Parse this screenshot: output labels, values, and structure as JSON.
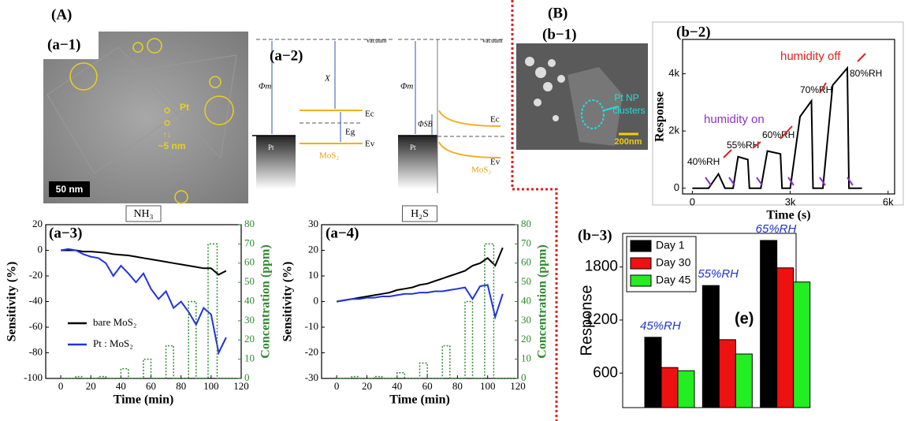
{
  "panels": {
    "A": "(A)",
    "a1": "(a−1)",
    "a2": "(a−2)",
    "a3": "(a−3)",
    "a4": "(a−4)",
    "B": "(B)",
    "b1": "(b−1)",
    "b2": "(b−2)",
    "b3": "(b−3)"
  },
  "tem_image": {
    "particle_label": "Pt",
    "size_label": "~5 nm",
    "scale_bar": "50 nm"
  },
  "band_diagram": {
    "left": {
      "vacuum": "vacuum",
      "work_function": "Φm",
      "affinity": "X",
      "conduction": "Ec",
      "gap": "Eg",
      "valence": "Ev",
      "metal": "Pt",
      "semiconductor": "MoS₂"
    },
    "right": {
      "vacuum": "vacuum",
      "work_function": "Φm",
      "barrier": "ΦSB",
      "conduction": "Ec",
      "valence": "Ev",
      "metal": "Pt",
      "semiconductor": "MoS₂"
    }
  },
  "sem_image": {
    "label_line1": "Pt NP",
    "label_line2": "clusters",
    "scale_bar": "200nm"
  },
  "chart_data": [
    {
      "type": "line",
      "title": "NH₃",
      "x_label": "Time (min)",
      "y_label": "Sensitivity (%)",
      "y2_label": "Concentration (ppm)",
      "x": [
        0,
        5,
        10,
        15,
        20,
        25,
        30,
        35,
        40,
        45,
        50,
        55,
        60,
        65,
        70,
        75,
        80,
        85,
        90,
        95,
        100,
        105,
        110
      ],
      "xlim": [
        -10,
        120
      ],
      "xticks": [
        0,
        20,
        40,
        60,
        80,
        100,
        120
      ],
      "ylim": [
        -100,
        20
      ],
      "yticks": [
        -100,
        -80,
        -60,
        -40,
        -20,
        0,
        20
      ],
      "y2lim": [
        0,
        80
      ],
      "y2ticks": [
        0,
        10,
        20,
        30,
        40,
        50,
        60,
        70,
        80
      ],
      "legend": "lower left",
      "series": [
        {
          "name": "bare MoS₂",
          "color": "#000000",
          "values": [
            0,
            0,
            0,
            -1,
            -1,
            -1.5,
            -2,
            -3,
            -3.5,
            -4,
            -5,
            -6,
            -7,
            -8,
            -9,
            -10,
            -11,
            -12,
            -13,
            -14,
            -14,
            -19,
            -16
          ]
        },
        {
          "name": "Pt : MoS₂",
          "color": "#2233dd",
          "values": [
            0,
            1,
            0,
            -3,
            -5,
            -6,
            -10,
            -20,
            -12,
            -18,
            -25,
            -18,
            -30,
            -38,
            -32,
            -45,
            -40,
            -48,
            -58,
            -45,
            -50,
            -80,
            -68
          ]
        },
        {
          "color": "#2e8b2e",
          "axis": "y2",
          "line_style": "dotted",
          "x": [
            0,
            10,
            10,
            14,
            14,
            25,
            25,
            30,
            30,
            40,
            40,
            45,
            45,
            55,
            55,
            60,
            60,
            70,
            70,
            75,
            75,
            85,
            85,
            90,
            90,
            98,
            98,
            104,
            104,
            120
          ],
          "values": [
            0,
            0,
            1,
            1,
            0,
            0,
            1,
            1,
            0,
            0,
            5,
            5,
            0,
            0,
            10,
            10,
            0,
            0,
            17,
            17,
            0,
            0,
            40,
            40,
            0,
            0,
            70,
            70,
            0,
            0
          ]
        }
      ]
    },
    {
      "type": "line",
      "title": "H₂S",
      "x_label": "Time (min)",
      "y_label": "Sensitivity (%)",
      "y2_label": "Concentration (ppm)",
      "x": [
        0,
        5,
        10,
        15,
        20,
        25,
        30,
        35,
        40,
        45,
        50,
        55,
        60,
        65,
        70,
        75,
        80,
        85,
        90,
        95,
        100,
        105,
        110
      ],
      "xlim": [
        -10,
        120
      ],
      "xticks": [
        0,
        20,
        40,
        60,
        80,
        100,
        120
      ],
      "ylim": [
        -30,
        30
      ],
      "yticks": [
        -30,
        -20,
        -10,
        0,
        10,
        20,
        30
      ],
      "y2lim": [
        0,
        80
      ],
      "y2ticks": [
        0,
        10,
        20,
        30,
        40,
        50,
        60,
        70,
        80
      ],
      "series": [
        {
          "color": "#000000",
          "values": [
            0,
            0.5,
            1,
            1.5,
            2,
            2.5,
            3,
            3.5,
            4.5,
            5,
            5.5,
            6.5,
            7,
            8,
            9,
            10,
            11,
            12,
            14,
            15,
            17,
            14,
            21
          ]
        },
        {
          "color": "#2233dd",
          "values": [
            0,
            0.5,
            1,
            1,
            1.5,
            1.5,
            2,
            2,
            2.5,
            3,
            3,
            3.5,
            3.5,
            4,
            4,
            4.5,
            5,
            5.5,
            1,
            6,
            6.5,
            -6,
            3
          ]
        },
        {
          "color": "#2e8b2e",
          "axis": "y2",
          "line_style": "dotted",
          "x": [
            0,
            10,
            10,
            14,
            14,
            25,
            25,
            30,
            30,
            40,
            40,
            45,
            45,
            55,
            55,
            60,
            60,
            70,
            70,
            75,
            75,
            85,
            85,
            90,
            90,
            98,
            98,
            104,
            104,
            120
          ],
          "values": [
            0,
            0,
            1,
            1,
            0,
            0,
            1,
            1,
            0,
            0,
            3,
            3,
            0,
            0,
            8,
            8,
            0,
            0,
            17,
            17,
            0,
            0,
            40,
            40,
            0,
            0,
            70,
            70,
            0,
            0
          ]
        }
      ]
    },
    {
      "type": "line",
      "x_label": "Time (s)",
      "y_label": "Response",
      "x": [
        0,
        300,
        500,
        800,
        1000,
        1200,
        1250,
        1400,
        1700,
        1750,
        2000,
        2100,
        2300,
        2700,
        2750,
        2900,
        3000,
        3300,
        3650,
        3700,
        3900,
        4000,
        4300,
        4750,
        4800,
        5000,
        5200
      ],
      "xlim": [
        -300,
        6200
      ],
      "xticks": [
        0,
        {
          "value": 3000,
          "label": "3k"
        },
        {
          "value": 6000,
          "label": "6k"
        }
      ],
      "ylim": [
        -200,
        5200
      ],
      "yticks": [
        0,
        {
          "value": 2000,
          "label": "2k"
        },
        {
          "value": 4000,
          "label": "4k"
        }
      ],
      "series": [
        {
          "color": "#000000",
          "values": [
            0,
            0,
            0,
            500,
            0,
            0,
            0,
            1100,
            1000,
            0,
            0,
            0,
            1300,
            1200,
            0,
            0,
            0,
            2500,
            3050,
            0,
            0,
            0,
            3600,
            4200,
            0,
            0,
            0
          ]
        }
      ],
      "annotations": {
        "on": "humidity on",
        "off": "humidity off",
        "rh": [
          "40%RH",
          "55%RH",
          "60%RH",
          "70%RH",
          "80%RH"
        ]
      }
    },
    {
      "type": "bar",
      "y_label": "Response",
      "annotation": "(e)",
      "categories": [
        "45%RH",
        "55%RH",
        "65%RH"
      ],
      "ylim": [
        210,
        2180
      ],
      "yticks": [
        600,
        1200,
        1800
      ],
      "legend": "upper left",
      "series": [
        {
          "name": "Day 1",
          "color": "#000000",
          "values": [
            1005,
            1590,
            2100
          ]
        },
        {
          "name": "Day 30",
          "color": "#ee1111",
          "values": [
            663,
            978,
            1790
          ]
        },
        {
          "name": "Day 45",
          "color": "#22ee22",
          "values": [
            627,
            816,
            1630
          ]
        }
      ]
    }
  ]
}
